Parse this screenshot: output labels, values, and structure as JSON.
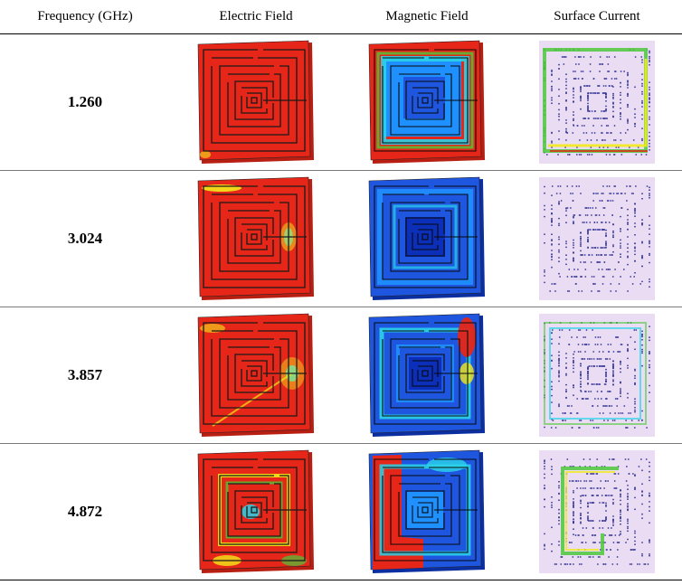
{
  "headers": {
    "frequency": "Frequency (GHz)",
    "electric": "Electric Field",
    "magnetic": "Magnetic Field",
    "surface": "Surface Current"
  },
  "rows": [
    {
      "frequency": "1.260"
    },
    {
      "frequency": "3.024"
    },
    {
      "frequency": "3.857"
    },
    {
      "frequency": "4.872"
    }
  ],
  "colors": {
    "red": "#e52618",
    "orange": "#ff8a00",
    "yellow": "#f2ea1a",
    "green": "#4cc93a",
    "cyan": "#2ad4e8",
    "light_blue": "#1e90ff",
    "blue": "#1f56e0",
    "dark_blue": "#0b2fb8",
    "lavender": "#eadcf3",
    "dots": "#3a3a9a"
  }
}
